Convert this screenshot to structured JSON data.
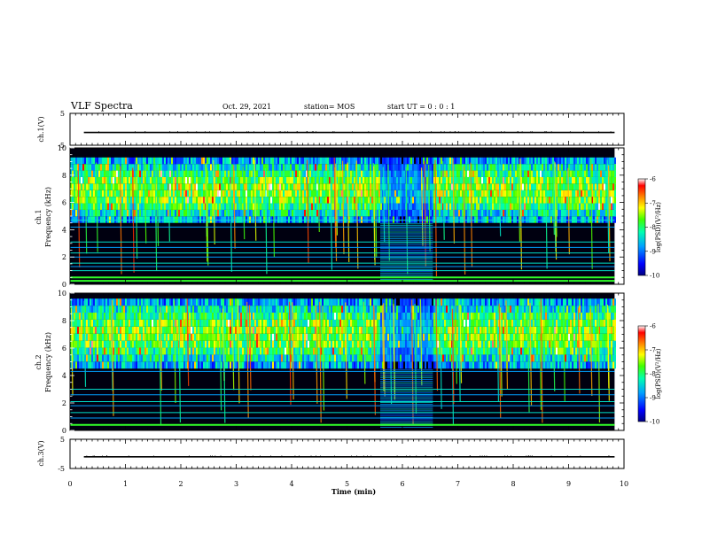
{
  "header": {
    "title": "VLF Spectra",
    "date": "Oct. 29, 2021",
    "station": "station= MOS",
    "start_ut": "start  UT =   0 : 0  : 1"
  },
  "chart_data": [
    {
      "type": "line",
      "panel": "ch1-waveform",
      "ylabel": "ch.1(V)",
      "ylim": [
        -5,
        5
      ],
      "y_ticklabels": [
        "5",
        "-5"
      ],
      "series": [
        {
          "values_constant": -1
        }
      ]
    },
    {
      "type": "heatmap",
      "panel": "ch1-spectrogram",
      "ylabel_top": "ch.1",
      "ylabel": "Frequency (kHz)",
      "ylim": [
        0,
        10
      ],
      "y_ticklabels": [
        "0",
        "2",
        "4",
        "6",
        "8",
        "10"
      ],
      "xlim": [
        0,
        10
      ],
      "data_extent_min": 9.83,
      "gap_interval_min": [
        5.6,
        6.55
      ],
      "emission_band_khz": [
        4.5,
        9.3
      ],
      "constant_lines_khz": [
        0.25,
        0.5,
        1.0,
        1.3,
        1.55,
        2.0,
        2.3,
        2.7,
        3.1,
        4.2,
        4.7
      ]
    },
    {
      "type": "heatmap",
      "panel": "ch2-spectrogram",
      "ylabel_top": "ch.2",
      "ylabel": "Frequency (kHz)",
      "ylim": [
        0,
        10
      ],
      "y_ticklabels": [
        "0",
        "2",
        "4",
        "6",
        "8",
        "10"
      ],
      "xlim": [
        0,
        10
      ],
      "data_extent_min": 9.83,
      "gap_interval_min": [
        5.6,
        6.55
      ],
      "emission_band_khz": [
        4.5,
        9.6
      ],
      "constant_lines_khz": [
        0.4,
        0.9,
        1.3,
        1.8,
        2.1,
        2.6,
        3.0,
        4.3
      ]
    },
    {
      "type": "line",
      "panel": "ch3-waveform",
      "ylabel": "ch.3(V)",
      "ylim": [
        -5,
        5
      ],
      "y_ticklabels": [
        "5",
        "-5"
      ],
      "series": [
        {
          "values_constant": -1
        }
      ]
    }
  ],
  "x_axis": {
    "label": "Time (min)",
    "ticklabels": [
      "0",
      "1",
      "2",
      "3",
      "4",
      "5",
      "6",
      "7",
      "8",
      "9",
      "10"
    ]
  },
  "colorbars": [
    {
      "label": "log(PSD)(V²/Hz)",
      "ticklabels": [
        "-6",
        "-7",
        "-8",
        "-9",
        "-10"
      ],
      "range": [
        -10,
        -6
      ]
    },
    {
      "label": "log(PSD)(V²/Hz)",
      "ticklabels": [
        "-6",
        "-7",
        "-8",
        "-9",
        "-10"
      ],
      "range": [
        -10,
        -6
      ]
    }
  ]
}
